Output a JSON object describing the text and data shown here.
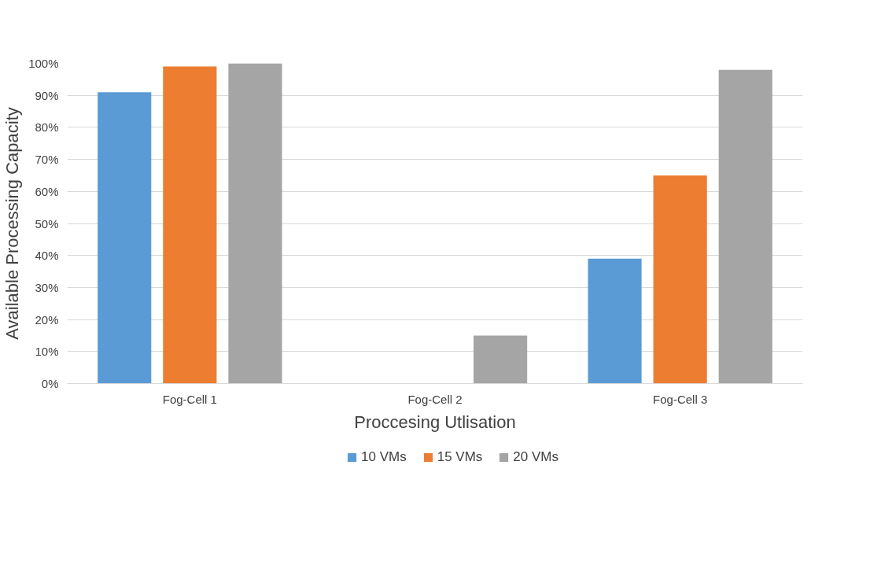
{
  "chart_data": {
    "type": "bar",
    "xlabel": "Proccesing Utlisation",
    "ylabel": "Available Processing Capacity",
    "categories": [
      "Fog-Cell 1",
      "Fog-Cell 2",
      "Fog-Cell 3"
    ],
    "series": [
      {
        "name": "10 VMs",
        "color": "#5b9bd5",
        "values": [
          91,
          0,
          39
        ]
      },
      {
        "name": "15 VMs",
        "color": "#ed7d31",
        "values": [
          99,
          0,
          65
        ]
      },
      {
        "name": "20 VMs",
        "color": "#a5a5a5",
        "values": [
          100,
          15,
          98
        ]
      }
    ],
    "ylim": [
      0,
      100
    ],
    "yticks": [
      {
        "value": 0,
        "label": "0%"
      },
      {
        "value": 10,
        "label": "10%"
      },
      {
        "value": 20,
        "label": "20%"
      },
      {
        "value": 30,
        "label": "30%"
      },
      {
        "value": 40,
        "label": "40%"
      },
      {
        "value": 50,
        "label": "50%"
      },
      {
        "value": 60,
        "label": "60%"
      },
      {
        "value": 70,
        "label": "70%"
      },
      {
        "value": 80,
        "label": "80%"
      },
      {
        "value": 90,
        "label": "90%"
      },
      {
        "value": 100,
        "label": "100%"
      }
    ],
    "grid": "y",
    "legend": "bottom"
  }
}
